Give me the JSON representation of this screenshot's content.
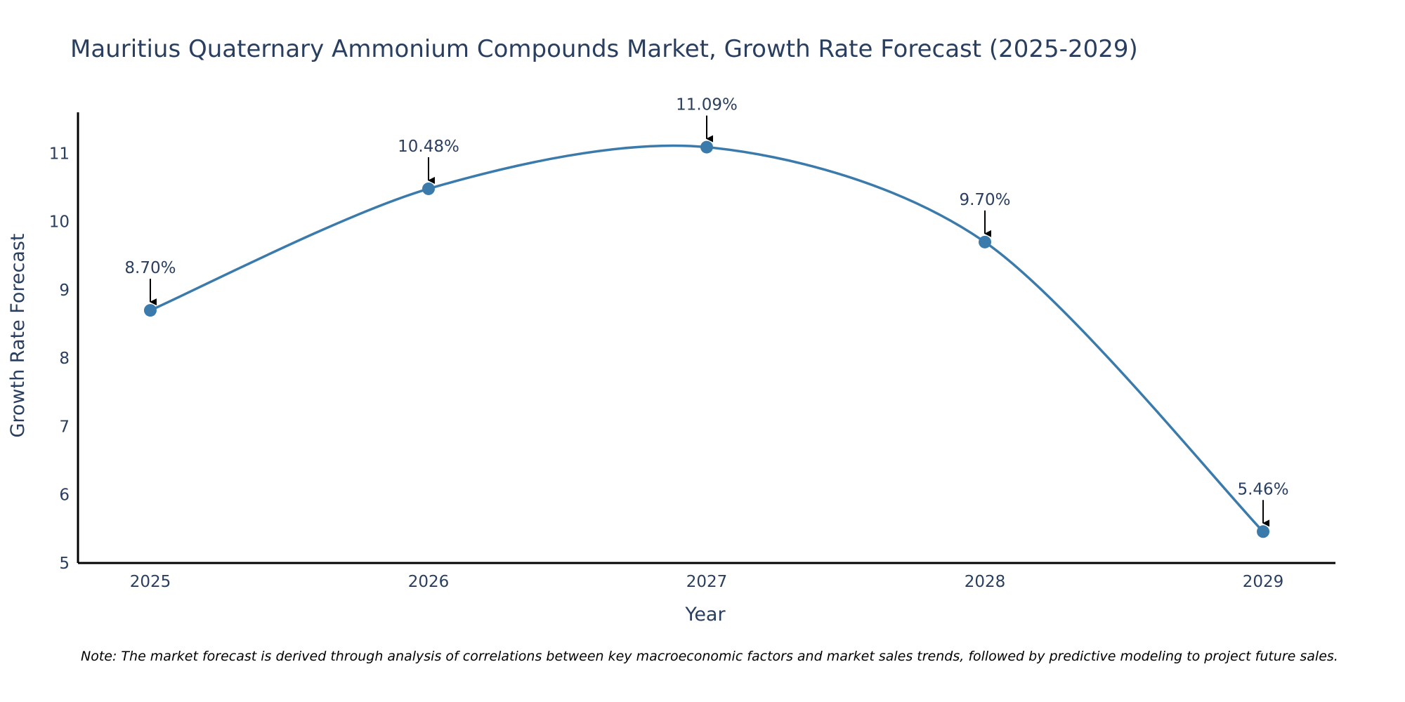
{
  "colors": {
    "series": "#3b7bac",
    "axis": "#000000",
    "text": "#2a3f5f",
    "arrow": "#000000"
  },
  "chart_data": {
    "type": "line",
    "title": "Mauritius Quaternary Ammonium Compounds Market, Growth Rate Forecast (2025-2029)",
    "xlabel": "Year",
    "ylabel": "Growth Rate Forecast",
    "categories": [
      "2025",
      "2026",
      "2027",
      "2028",
      "2029"
    ],
    "values": [
      8.7,
      10.48,
      11.09,
      9.7,
      5.46
    ],
    "data_labels": [
      "8.70%",
      "10.48%",
      "11.09%",
      "9.70%",
      "5.46%"
    ],
    "yticks": [
      5,
      6,
      7,
      8,
      9,
      10,
      11
    ],
    "ytick_labels": [
      "5",
      "6",
      "7",
      "8",
      "9",
      "10",
      "11"
    ],
    "ylim": [
      5,
      11.6
    ],
    "xlim": [
      2024.74,
      2029.26
    ],
    "line_shape": "spline",
    "grid": false,
    "legend": "none",
    "note": "Note: The market forecast is derived through analysis of correlations between key macroeconomic factors and market sales trends, followed by predictive modeling to project future sales."
  }
}
